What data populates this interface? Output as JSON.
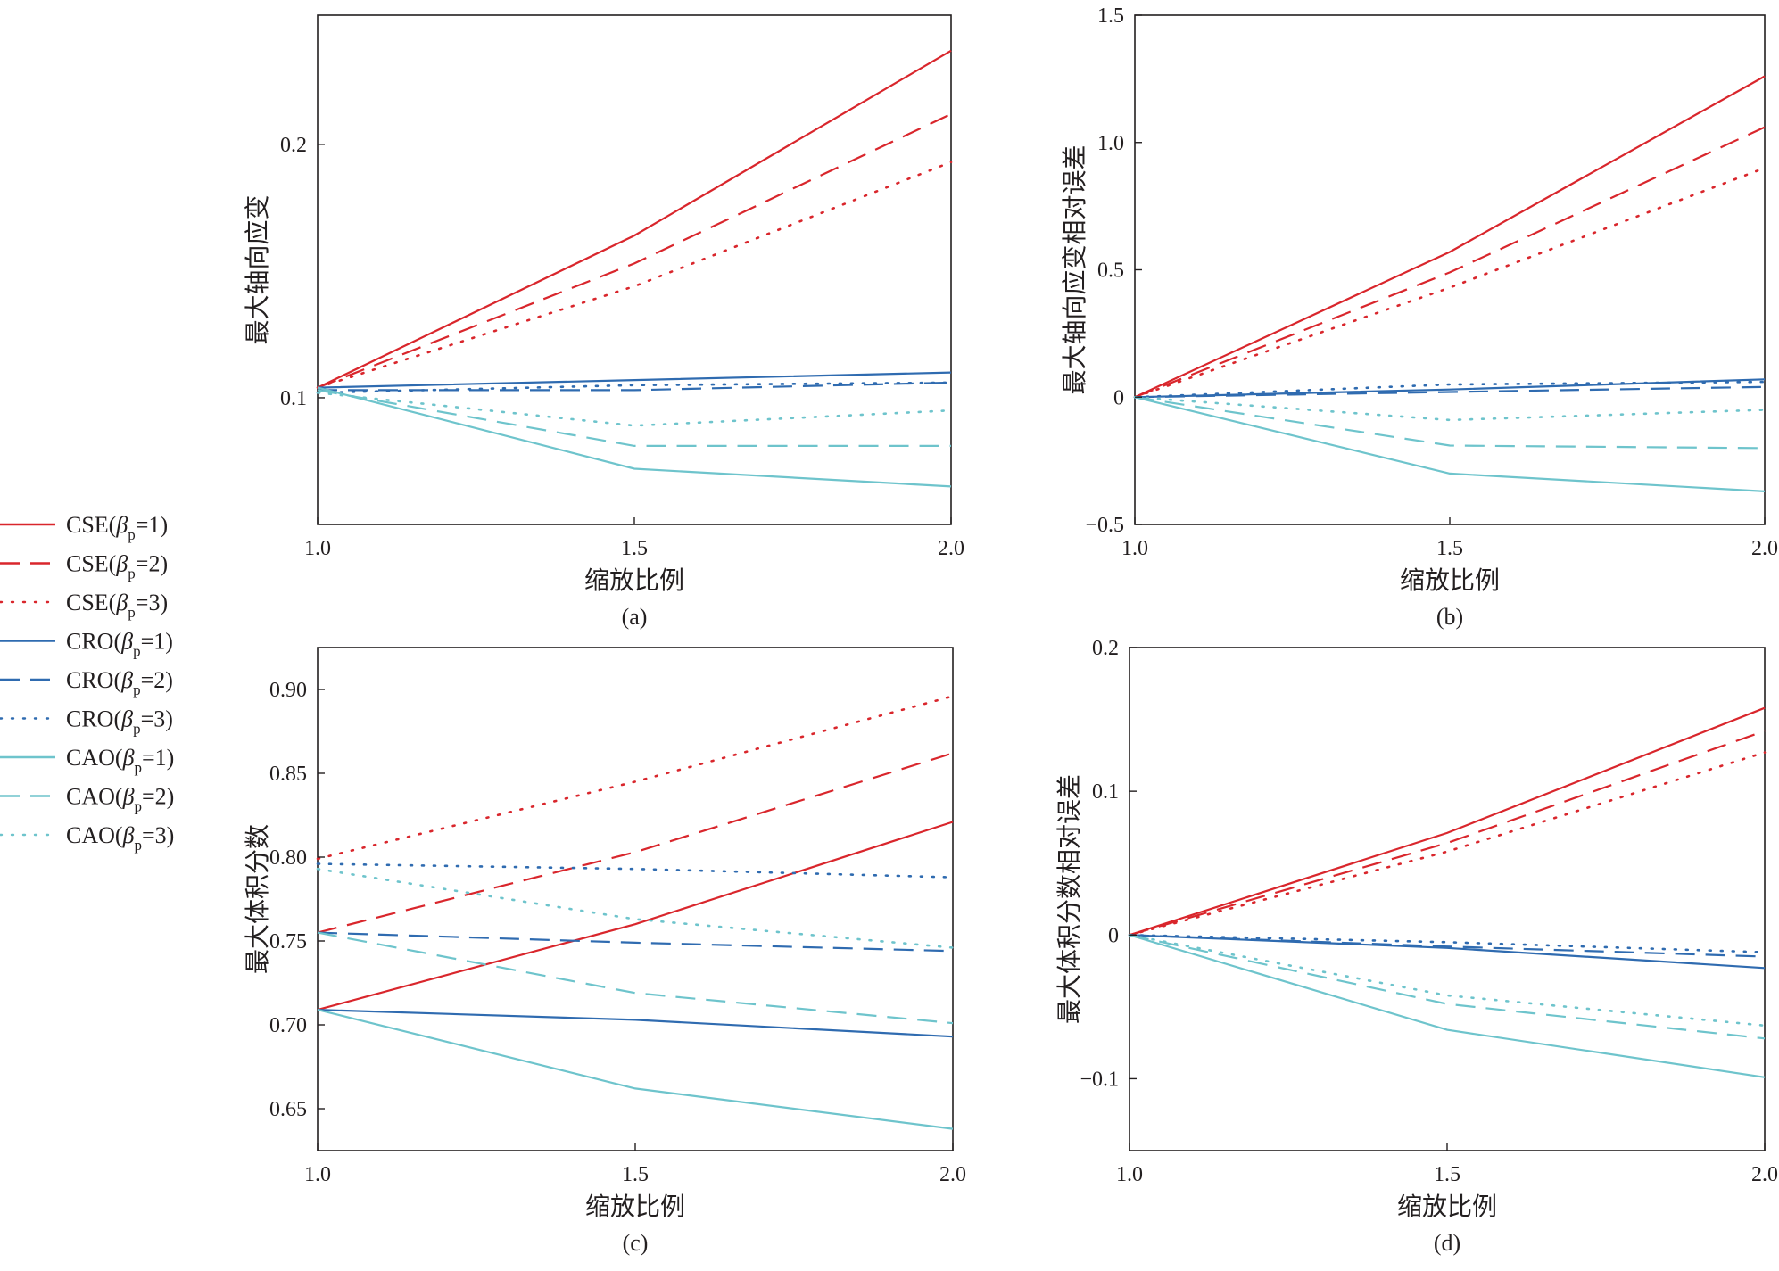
{
  "figure": {
    "legend": [
      {
        "label": "CSE",
        "beta": "1",
        "color": "#d9262c",
        "dash": "solid"
      },
      {
        "label": "CSE",
        "beta": "2",
        "color": "#d9262c",
        "dash": "dash"
      },
      {
        "label": "CSE",
        "beta": "3",
        "color": "#d9262c",
        "dash": "dot"
      },
      {
        "label": "CRO",
        "beta": "1",
        "color": "#2f6bb0",
        "dash": "solid"
      },
      {
        "label": "CRO",
        "beta": "2",
        "color": "#2f6bb0",
        "dash": "dash"
      },
      {
        "label": "CRO",
        "beta": "3",
        "color": "#2f6bb0",
        "dash": "dot"
      },
      {
        "label": "CAO",
        "beta": "1",
        "color": "#6ec4cc",
        "dash": "solid"
      },
      {
        "label": "CAO",
        "beta": "2",
        "color": "#6ec4cc",
        "dash": "dash"
      },
      {
        "label": "CAO",
        "beta": "3",
        "color": "#6ec4cc",
        "dash": "dot"
      }
    ],
    "legend_beta_symbol": "β",
    "legend_beta_sub": "p"
  },
  "chart_data": [
    {
      "type": "line",
      "caption": "(a)",
      "xlabel": "缩放比例",
      "ylabel": "最大轴向应变",
      "x": [
        1.0,
        1.5,
        2.0
      ],
      "xlim": [
        1.0,
        2.0
      ],
      "ylim": [
        0.05,
        0.251
      ],
      "xticks": [
        1.0,
        1.5,
        2.0
      ],
      "xtick_labels": [
        "1.0",
        "1.5",
        "2.0"
      ],
      "yticks": [
        0.1,
        0.2
      ],
      "ytick_labels": [
        "0.1",
        "0.2"
      ],
      "series": [
        {
          "name": "CSE(βp=1)",
          "values": [
            0.104,
            0.164,
            0.237
          ]
        },
        {
          "name": "CSE(βp=2)",
          "values": [
            0.104,
            0.153,
            0.212
          ]
        },
        {
          "name": "CSE(βp=3)",
          "values": [
            0.104,
            0.144,
            0.193
          ]
        },
        {
          "name": "CRO(βp=1)",
          "values": [
            0.104,
            0.107,
            0.11
          ]
        },
        {
          "name": "CRO(βp=2)",
          "values": [
            0.103,
            0.103,
            0.106
          ]
        },
        {
          "name": "CRO(βp=3)",
          "values": [
            0.102,
            0.105,
            0.106
          ]
        },
        {
          "name": "CAO(βp=1)",
          "values": [
            0.104,
            0.072,
            0.065
          ]
        },
        {
          "name": "CAO(βp=2)",
          "values": [
            0.103,
            0.081,
            0.081
          ]
        },
        {
          "name": "CAO(βp=3)",
          "values": [
            0.102,
            0.089,
            0.095
          ]
        }
      ]
    },
    {
      "type": "line",
      "caption": "(b)",
      "xlabel": "缩放比例",
      "ylabel": "最大轴向应变相对误差",
      "x": [
        1.0,
        1.5,
        2.0
      ],
      "xlim": [
        1.0,
        2.0
      ],
      "ylim": [
        -0.5,
        1.5
      ],
      "xticks": [
        1.0,
        1.5,
        2.0
      ],
      "xtick_labels": [
        "1.0",
        "1.5",
        "2.0"
      ],
      "yticks": [
        -0.5,
        0,
        0.5,
        1.0,
        1.5
      ],
      "ytick_labels": [
        "−0.5",
        "0",
        "0.5",
        "1.0",
        "1.5"
      ],
      "series": [
        {
          "name": "CSE(βp=1)",
          "values": [
            0,
            0.57,
            1.26
          ]
        },
        {
          "name": "CSE(βp=2)",
          "values": [
            0,
            0.49,
            1.06
          ]
        },
        {
          "name": "CSE(βp=3)",
          "values": [
            0,
            0.43,
            0.9
          ]
        },
        {
          "name": "CRO(βp=1)",
          "values": [
            0,
            0.03,
            0.07
          ]
        },
        {
          "name": "CRO(βp=2)",
          "values": [
            0,
            0.02,
            0.04
          ]
        },
        {
          "name": "CRO(βp=3)",
          "values": [
            0,
            0.05,
            0.06
          ]
        },
        {
          "name": "CAO(βp=1)",
          "values": [
            0,
            -0.3,
            -0.37
          ]
        },
        {
          "name": "CAO(βp=2)",
          "values": [
            0,
            -0.19,
            -0.2
          ]
        },
        {
          "name": "CAO(βp=3)",
          "values": [
            0,
            -0.09,
            -0.05
          ]
        }
      ]
    },
    {
      "type": "line",
      "caption": "(c)",
      "xlabel": "缩放比例",
      "ylabel": "最大体积分数",
      "x": [
        1.0,
        1.5,
        2.0
      ],
      "xlim": [
        1.0,
        2.0
      ],
      "ylim": [
        0.625,
        0.925
      ],
      "xticks": [
        1.0,
        1.5,
        2.0
      ],
      "xtick_labels": [
        "1.0",
        "1.5",
        "2.0"
      ],
      "yticks": [
        0.65,
        0.7,
        0.75,
        0.8,
        0.85,
        0.9
      ],
      "ytick_labels": [
        "0.65",
        "0.70",
        "0.75",
        "0.80",
        "0.85",
        "0.90"
      ],
      "series": [
        {
          "name": "CSE(βp=1)",
          "values": [
            0.709,
            0.76,
            0.821
          ]
        },
        {
          "name": "CSE(βp=2)",
          "values": [
            0.755,
            0.803,
            0.862
          ]
        },
        {
          "name": "CSE(βp=3)",
          "values": [
            0.799,
            0.845,
            0.896
          ]
        },
        {
          "name": "CRO(βp=1)",
          "values": [
            0.709,
            0.703,
            0.693
          ]
        },
        {
          "name": "CRO(βp=2)",
          "values": [
            0.755,
            0.749,
            0.744
          ]
        },
        {
          "name": "CRO(βp=3)",
          "values": [
            0.796,
            0.793,
            0.788
          ]
        },
        {
          "name": "CAO(βp=1)",
          "values": [
            0.709,
            0.662,
            0.638
          ]
        },
        {
          "name": "CAO(βp=2)",
          "values": [
            0.755,
            0.719,
            0.701
          ]
        },
        {
          "name": "CAO(βp=3)",
          "values": [
            0.793,
            0.763,
            0.746
          ]
        }
      ]
    },
    {
      "type": "line",
      "caption": "(d)",
      "xlabel": "缩放比例",
      "ylabel": "最大体积分数相对误差",
      "x": [
        1.0,
        1.5,
        2.0
      ],
      "xlim": [
        1.0,
        2.0
      ],
      "ylim": [
        -0.15,
        0.2
      ],
      "xticks": [
        1.0,
        1.5,
        2.0
      ],
      "xtick_labels": [
        "1.0",
        "1.5",
        "2.0"
      ],
      "yticks": [
        -0.1,
        0,
        0.1,
        0.2
      ],
      "ytick_labels": [
        "−0.1",
        "0",
        "0.1",
        "0.2"
      ],
      "series": [
        {
          "name": "CSE(βp=1)",
          "values": [
            0,
            0.071,
            0.158
          ]
        },
        {
          "name": "CSE(βp=2)",
          "values": [
            0,
            0.064,
            0.142
          ]
        },
        {
          "name": "CSE(βp=3)",
          "values": [
            0,
            0.058,
            0.127
          ]
        },
        {
          "name": "CRO(βp=1)",
          "values": [
            0,
            -0.009,
            -0.023
          ]
        },
        {
          "name": "CRO(βp=2)",
          "values": [
            0,
            -0.008,
            -0.015
          ]
        },
        {
          "name": "CRO(βp=3)",
          "values": [
            0,
            -0.005,
            -0.012
          ]
        },
        {
          "name": "CAO(βp=1)",
          "values": [
            0,
            -0.066,
            -0.099
          ]
        },
        {
          "name": "CAO(βp=2)",
          "values": [
            0,
            -0.048,
            -0.072
          ]
        },
        {
          "name": "CAO(βp=3)",
          "values": [
            0,
            -0.042,
            -0.063
          ]
        }
      ]
    }
  ]
}
